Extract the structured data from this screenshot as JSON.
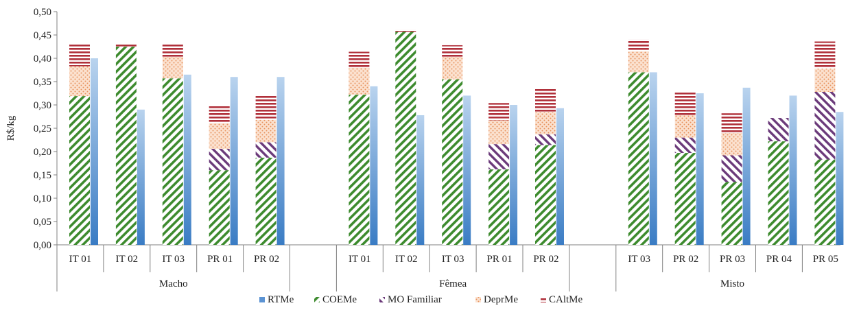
{
  "chart_data": {
    "type": "bar",
    "ylabel": "R$/kg",
    "ylim": [
      0,
      0.5
    ],
    "yticks": [
      "0,00",
      "0,05",
      "0,10",
      "0,15",
      "0,20",
      "0,25",
      "0,30",
      "0,35",
      "0,40",
      "0,45",
      "0,50"
    ],
    "grid": false,
    "legend_position": "bottom",
    "colors": {
      "RTMe": "#6a9fd8",
      "COEMe": "#3d8b2e",
      "MO Familiar": "#6b3a7a",
      "DeprMe": "#f0b08a",
      "CAltMe": "#b0303a"
    },
    "legend": [
      "RTMe",
      "COEMe",
      "MO Familiar",
      "DeprMe",
      "CAltMe"
    ],
    "groups": [
      {
        "name": "Macho",
        "categories": [
          "IT 01",
          "IT 02",
          "IT 03",
          "PR 01",
          "PR 02"
        ],
        "COEMe": [
          0.319,
          0.425,
          0.357,
          0.16,
          0.187
        ],
        "MO Familiar": [
          0.0,
          0.0,
          0.0,
          0.046,
          0.033
        ],
        "DeprMe": [
          0.064,
          0.0,
          0.046,
          0.055,
          0.048
        ],
        "CAltMe": [
          0.049,
          0.005,
          0.028,
          0.039,
          0.052
        ],
        "RTMe": [
          0.4,
          0.29,
          0.365,
          0.36,
          0.36
        ]
      },
      {
        "name": "Fêmea",
        "categories": [
          "IT 01",
          "IT 02",
          "IT 03",
          "PR 01",
          "PR 02"
        ],
        "COEMe": [
          0.322,
          0.457,
          0.355,
          0.162,
          0.214
        ],
        "MO Familiar": [
          0.0,
          0.0,
          0.0,
          0.054,
          0.023
        ],
        "DeprMe": [
          0.058,
          0.0,
          0.048,
          0.051,
          0.048
        ],
        "CAltMe": [
          0.034,
          0.005,
          0.025,
          0.037,
          0.05
        ],
        "RTMe": [
          0.34,
          0.278,
          0.32,
          0.3,
          0.293
        ]
      },
      {
        "name": "Misto",
        "categories": [
          "IT 03",
          "PR 02",
          "PR 03",
          "PR 04",
          "PR 05"
        ],
        "COEMe": [
          0.37,
          0.197,
          0.135,
          0.222,
          0.183
        ],
        "MO Familiar": [
          0.0,
          0.033,
          0.057,
          0.05,
          0.145
        ],
        "DeprMe": [
          0.045,
          0.048,
          0.048,
          0.0,
          0.05
        ],
        "CAltMe": [
          0.025,
          0.05,
          0.042,
          0.0,
          0.058
        ],
        "RTMe": [
          0.37,
          0.325,
          0.337,
          0.32,
          0.285
        ]
      }
    ]
  }
}
